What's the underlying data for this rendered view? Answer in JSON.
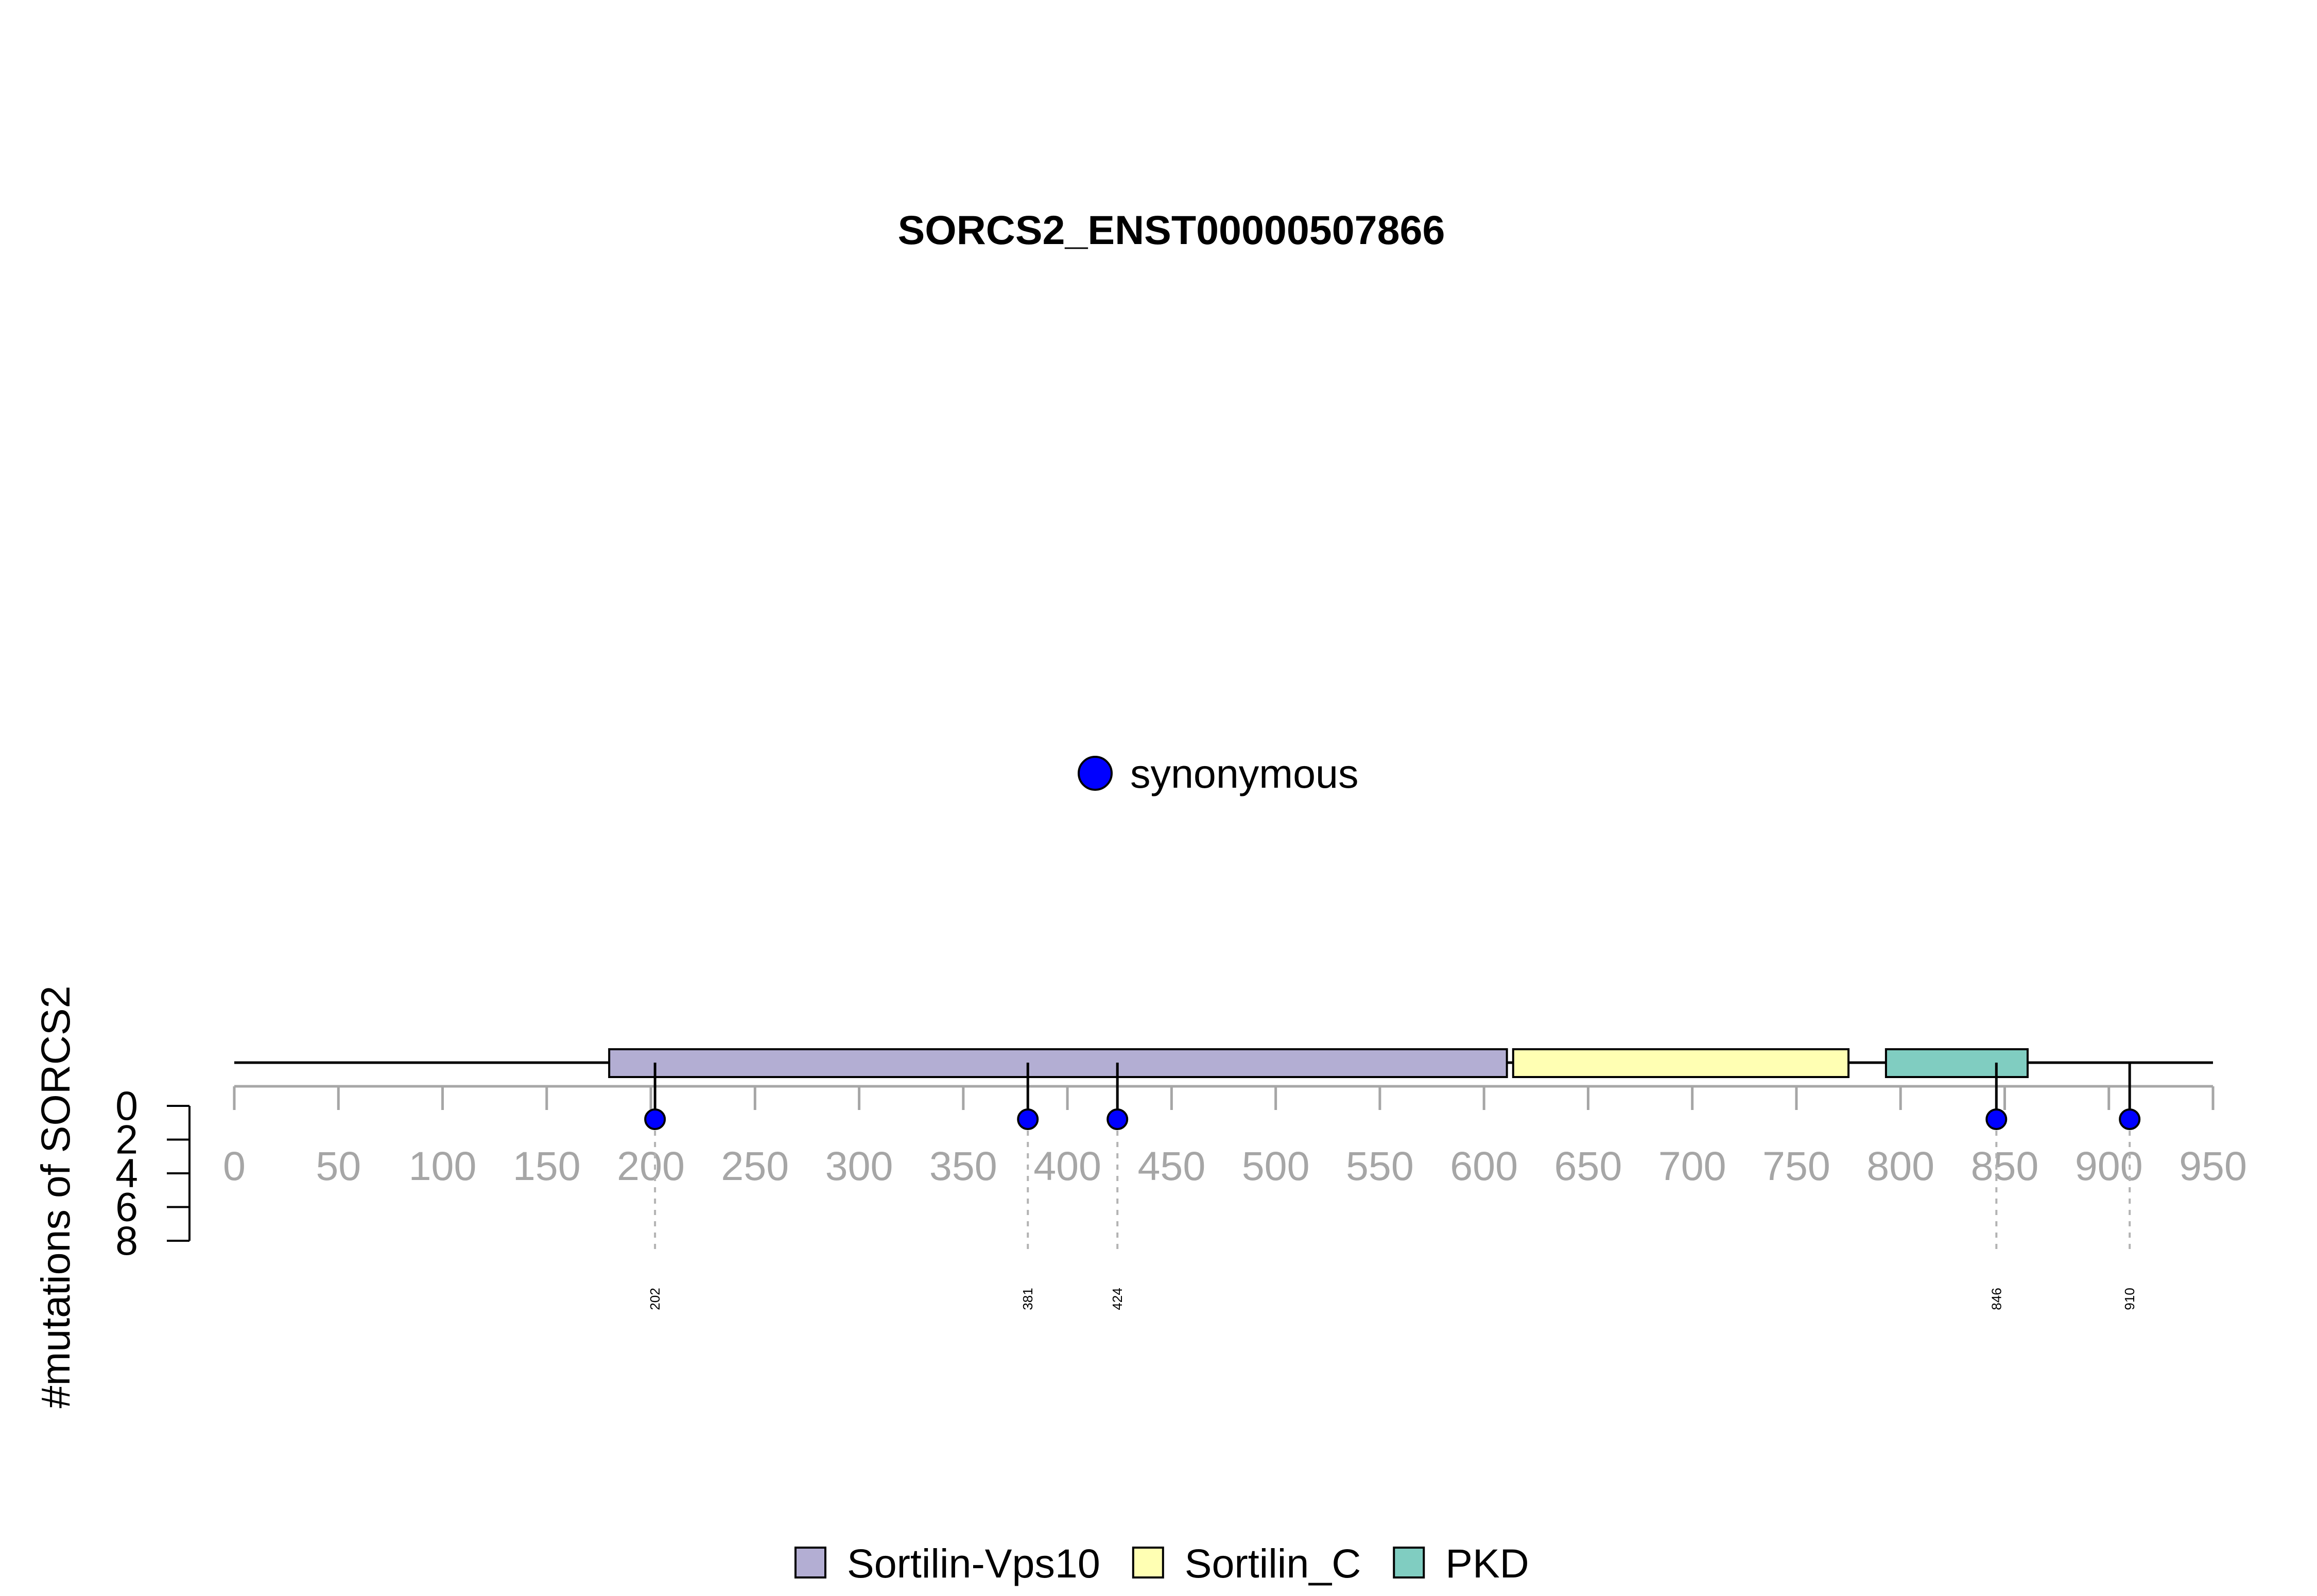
{
  "chart_data": {
    "type": "lollipop",
    "title": "SORCS2_ENST00000507866",
    "ylabel": "#mutations of SORCS2",
    "protein_length": 950,
    "xlim": [
      0,
      950
    ],
    "x_ticks": [
      0,
      50,
      100,
      150,
      200,
      250,
      300,
      350,
      400,
      450,
      500,
      550,
      600,
      650,
      700,
      750,
      800,
      850,
      900,
      950
    ],
    "y_ticks": [
      0,
      2,
      4,
      6,
      8
    ],
    "ylim": [
      0,
      8
    ],
    "mutation_legend": [
      {
        "label": "synonymous",
        "color": "#0000ff"
      }
    ],
    "domains": [
      {
        "name": "Sortilin-Vps10",
        "start": 180,
        "end": 611,
        "color": "#b3aed3"
      },
      {
        "name": "Sortilin_C",
        "start": 614,
        "end": 775,
        "color": "#ffffb3"
      },
      {
        "name": "PKD",
        "start": 793,
        "end": 861,
        "color": "#80cdc1"
      }
    ],
    "domain_legend": [
      {
        "label": "Sortilin-Vps10",
        "color": "#b3aed3"
      },
      {
        "label": "Sortilin_C",
        "color": "#ffffb3"
      },
      {
        "label": "PKD",
        "color": "#80cdc1"
      }
    ],
    "mutations": [
      {
        "position": 202,
        "label": "202",
        "count": 1,
        "type": "synonymous"
      },
      {
        "position": 381,
        "label": "381",
        "count": 1,
        "type": "synonymous"
      },
      {
        "position": 424,
        "label": "424",
        "count": 1,
        "type": "synonymous"
      },
      {
        "position": 846,
        "label": "846",
        "count": 1,
        "type": "synonymous"
      },
      {
        "position": 910,
        "label": "910",
        "count": 1,
        "type": "synonymous"
      }
    ]
  }
}
